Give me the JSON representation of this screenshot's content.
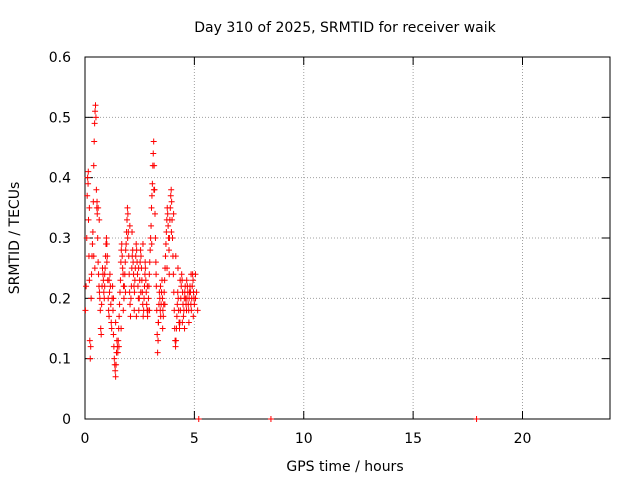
{
  "chart_data": {
    "type": "scatter",
    "title": "Day 310 of 2025, SRMTID for receiver waik",
    "xlabel": "GPS time / hours",
    "ylabel": "SRMTID / TECUs",
    "xlim": [
      0,
      24
    ],
    "ylim": [
      0,
      0.6
    ],
    "xticks": [
      0,
      5,
      10,
      15,
      20
    ],
    "yticks": [
      0,
      0.1,
      0.2,
      0.3,
      0.4,
      0.5,
      0.6
    ],
    "xtick_labels": [
      "0",
      "5",
      "10",
      "15",
      "20"
    ],
    "ytick_labels": [
      "0",
      "0.1",
      "0.2",
      "0.3",
      "0.4",
      "0.5",
      "0.6"
    ],
    "grid": true,
    "marker": "+",
    "color": "#ff0000",
    "series": [
      {
        "name": "SRMTID",
        "points": [
          [
            0.02,
            0.18
          ],
          [
            0.05,
            0.22
          ],
          [
            0.08,
            0.3
          ],
          [
            0.1,
            0.37
          ],
          [
            0.12,
            0.4
          ],
          [
            0.14,
            0.39
          ],
          [
            0.16,
            0.33
          ],
          [
            0.18,
            0.27
          ],
          [
            0.2,
            0.23
          ],
          [
            0.22,
            0.13
          ],
          [
            0.24,
            0.1
          ],
          [
            0.26,
            0.12
          ],
          [
            0.28,
            0.2
          ],
          [
            0.3,
            0.24
          ],
          [
            0.32,
            0.27
          ],
          [
            0.34,
            0.29
          ],
          [
            0.36,
            0.31
          ],
          [
            0.38,
            0.36
          ],
          [
            0.4,
            0.42
          ],
          [
            0.42,
            0.46
          ],
          [
            0.44,
            0.49
          ],
          [
            0.46,
            0.51
          ],
          [
            0.48,
            0.52
          ],
          [
            0.5,
            0.5
          ],
          [
            0.52,
            0.38
          ],
          [
            0.54,
            0.35
          ],
          [
            0.56,
            0.34
          ],
          [
            0.58,
            0.3
          ],
          [
            0.6,
            0.26
          ],
          [
            0.62,
            0.24
          ],
          [
            0.64,
            0.22
          ],
          [
            0.66,
            0.21
          ],
          [
            0.68,
            0.2
          ],
          [
            0.7,
            0.18
          ],
          [
            0.72,
            0.15
          ],
          [
            0.74,
            0.14
          ],
          [
            0.76,
            0.19
          ],
          [
            0.78,
            0.22
          ],
          [
            0.8,
            0.25
          ],
          [
            0.82,
            0.24
          ],
          [
            0.84,
            0.23
          ],
          [
            0.86,
            0.21
          ],
          [
            0.88,
            0.2
          ],
          [
            0.9,
            0.22
          ],
          [
            0.92,
            0.25
          ],
          [
            0.94,
            0.27
          ],
          [
            0.96,
            0.29
          ],
          [
            0.98,
            0.3
          ],
          [
            1.0,
            0.29
          ],
          [
            1.02,
            0.27
          ],
          [
            1.04,
            0.23
          ],
          [
            1.06,
            0.2
          ],
          [
            1.08,
            0.18
          ],
          [
            1.1,
            0.17
          ],
          [
            1.12,
            0.21
          ],
          [
            1.14,
            0.24
          ],
          [
            1.16,
            0.22
          ],
          [
            1.18,
            0.19
          ],
          [
            1.2,
            0.16
          ],
          [
            1.22,
            0.15
          ],
          [
            1.24,
            0.2
          ],
          [
            1.26,
            0.22
          ],
          [
            1.28,
            0.18
          ],
          [
            1.3,
            0.14
          ],
          [
            1.32,
            0.12
          ],
          [
            1.34,
            0.1
          ],
          [
            1.36,
            0.09
          ],
          [
            1.38,
            0.08
          ],
          [
            1.4,
            0.07
          ],
          [
            1.42,
            0.09
          ],
          [
            1.44,
            0.11
          ],
          [
            1.46,
            0.13
          ],
          [
            1.48,
            0.12
          ],
          [
            1.5,
            0.11
          ],
          [
            1.52,
            0.13
          ],
          [
            1.54,
            0.15
          ],
          [
            1.56,
            0.17
          ],
          [
            1.58,
            0.19
          ],
          [
            1.6,
            0.21
          ],
          [
            1.62,
            0.23
          ],
          [
            1.64,
            0.26
          ],
          [
            1.66,
            0.28
          ],
          [
            1.68,
            0.29
          ],
          [
            1.7,
            0.27
          ],
          [
            1.72,
            0.25
          ],
          [
            1.74,
            0.24
          ],
          [
            1.76,
            0.22
          ],
          [
            1.78,
            0.2
          ],
          [
            1.8,
            0.22
          ],
          [
            1.82,
            0.24
          ],
          [
            1.84,
            0.26
          ],
          [
            1.86,
            0.28
          ],
          [
            1.88,
            0.29
          ],
          [
            1.9,
            0.31
          ],
          [
            1.92,
            0.33
          ],
          [
            1.94,
            0.35
          ],
          [
            1.96,
            0.34
          ],
          [
            1.98,
            0.31
          ],
          [
            2.0,
            0.27
          ],
          [
            2.02,
            0.24
          ],
          [
            2.04,
            0.21
          ],
          [
            2.06,
            0.19
          ],
          [
            2.08,
            0.17
          ],
          [
            2.1,
            0.2
          ],
          [
            2.12,
            0.22
          ],
          [
            2.14,
            0.25
          ],
          [
            2.16,
            0.27
          ],
          [
            2.18,
            0.28
          ],
          [
            2.2,
            0.26
          ],
          [
            2.22,
            0.24
          ],
          [
            2.24,
            0.22
          ],
          [
            2.26,
            0.21
          ],
          [
            2.28,
            0.23
          ],
          [
            2.3,
            0.25
          ],
          [
            2.32,
            0.27
          ],
          [
            2.34,
            0.29
          ],
          [
            2.36,
            0.28
          ],
          [
            2.38,
            0.26
          ],
          [
            2.4,
            0.24
          ],
          [
            2.42,
            0.22
          ],
          [
            2.44,
            0.2
          ],
          [
            2.46,
            0.18
          ],
          [
            2.48,
            0.2
          ],
          [
            2.5,
            0.23
          ],
          [
            2.52,
            0.26
          ],
          [
            2.54,
            0.28
          ],
          [
            2.56,
            0.27
          ],
          [
            2.58,
            0.25
          ],
          [
            2.6,
            0.23
          ],
          [
            2.62,
            0.21
          ],
          [
            2.64,
            0.19
          ],
          [
            2.66,
            0.17
          ],
          [
            2.68,
            0.18
          ],
          [
            2.7,
            0.2
          ],
          [
            2.72,
            0.22
          ],
          [
            2.74,
            0.24
          ],
          [
            2.76,
            0.25
          ],
          [
            2.78,
            0.23
          ],
          [
            2.8,
            0.21
          ],
          [
            2.82,
            0.19
          ],
          [
            2.84,
            0.18
          ],
          [
            2.86,
            0.17
          ],
          [
            2.88,
            0.18
          ],
          [
            2.9,
            0.2
          ],
          [
            2.92,
            0.22
          ],
          [
            2.94,
            0.24
          ],
          [
            2.96,
            0.26
          ],
          [
            2.98,
            0.28
          ],
          [
            3.0,
            0.3
          ],
          [
            3.02,
            0.32
          ],
          [
            3.04,
            0.35
          ],
          [
            3.06,
            0.37
          ],
          [
            3.08,
            0.39
          ],
          [
            3.1,
            0.42
          ],
          [
            3.12,
            0.44
          ],
          [
            3.14,
            0.46
          ],
          [
            3.16,
            0.42
          ],
          [
            3.18,
            0.38
          ],
          [
            3.2,
            0.34
          ],
          [
            3.22,
            0.3
          ],
          [
            3.24,
            0.26
          ],
          [
            3.26,
            0.22
          ],
          [
            3.28,
            0.18
          ],
          [
            3.3,
            0.14
          ],
          [
            3.32,
            0.11
          ],
          [
            3.34,
            0.13
          ],
          [
            3.36,
            0.16
          ],
          [
            3.38,
            0.19
          ],
          [
            3.4,
            0.21
          ],
          [
            3.42,
            0.2
          ],
          [
            3.44,
            0.18
          ],
          [
            3.46,
            0.17
          ],
          [
            3.48,
            0.19
          ],
          [
            3.5,
            0.21
          ],
          [
            3.52,
            0.23
          ],
          [
            3.54,
            0.2
          ],
          [
            3.56,
            0.18
          ],
          [
            3.58,
            0.17
          ],
          [
            3.6,
            0.19
          ],
          [
            3.62,
            0.21
          ],
          [
            3.64,
            0.23
          ],
          [
            3.66,
            0.25
          ],
          [
            3.68,
            0.27
          ],
          [
            3.7,
            0.29
          ],
          [
            3.72,
            0.31
          ],
          [
            3.74,
            0.33
          ],
          [
            3.76,
            0.35
          ],
          [
            3.78,
            0.34
          ],
          [
            3.8,
            0.32
          ],
          [
            3.82,
            0.3
          ],
          [
            3.84,
            0.28
          ],
          [
            3.86,
            0.3
          ],
          [
            3.88,
            0.33
          ],
          [
            3.9,
            0.35
          ],
          [
            3.92,
            0.37
          ],
          [
            3.94,
            0.38
          ],
          [
            3.96,
            0.36
          ],
          [
            3.98,
            0.33
          ],
          [
            4.0,
            0.3
          ],
          [
            4.02,
            0.27
          ],
          [
            4.04,
            0.24
          ],
          [
            4.06,
            0.21
          ],
          [
            4.08,
            0.18
          ],
          [
            4.1,
            0.15
          ],
          [
            4.12,
            0.13
          ],
          [
            4.14,
            0.12
          ],
          [
            4.16,
            0.13
          ],
          [
            4.18,
            0.15
          ],
          [
            4.2,
            0.17
          ],
          [
            4.22,
            0.19
          ],
          [
            4.24,
            0.21
          ],
          [
            4.26,
            0.2
          ],
          [
            4.28,
            0.18
          ],
          [
            4.3,
            0.16
          ],
          [
            4.32,
            0.15
          ],
          [
            4.34,
            0.16
          ],
          [
            4.36,
            0.18
          ],
          [
            4.38,
            0.2
          ],
          [
            4.4,
            0.22
          ],
          [
            4.42,
            0.24
          ],
          [
            4.44,
            0.23
          ],
          [
            4.46,
            0.21
          ],
          [
            4.48,
            0.19
          ],
          [
            4.5,
            0.17
          ],
          [
            4.52,
            0.18
          ],
          [
            4.54,
            0.2
          ],
          [
            4.56,
            0.21
          ],
          [
            4.58,
            0.22
          ],
          [
            4.6,
            0.2
          ],
          [
            4.62,
            0.19
          ],
          [
            4.64,
            0.18
          ],
          [
            4.66,
            0.2
          ],
          [
            4.68,
            0.22
          ],
          [
            4.7,
            0.21
          ],
          [
            4.72,
            0.19
          ],
          [
            4.74,
            0.18
          ],
          [
            4.76,
            0.2
          ],
          [
            4.78,
            0.21
          ],
          [
            4.8,
            0.22
          ],
          [
            4.82,
            0.21
          ],
          [
            4.84,
            0.19
          ],
          [
            4.86,
            0.18
          ],
          [
            4.88,
            0.2
          ],
          [
            4.9,
            0.22
          ],
          [
            4.92,
            0.24
          ],
          [
            4.94,
            0.23
          ],
          [
            4.96,
            0.21
          ],
          [
            4.98,
            0.2
          ],
          [
            5.0,
            0.19
          ],
          [
            5.05,
            0.2
          ],
          [
            5.1,
            0.21
          ],
          [
            5.15,
            0.18
          ],
          [
            0.15,
            0.41
          ],
          [
            0.2,
            0.35
          ],
          [
            0.4,
            0.27
          ],
          [
            0.45,
            0.25
          ],
          [
            0.55,
            0.36
          ],
          [
            0.6,
            0.35
          ],
          [
            0.65,
            0.33
          ],
          [
            0.9,
            0.24
          ],
          [
            1.0,
            0.26
          ],
          [
            1.1,
            0.23
          ],
          [
            1.3,
            0.2
          ],
          [
            1.4,
            0.16
          ],
          [
            1.55,
            0.12
          ],
          [
            1.65,
            0.15
          ],
          [
            1.75,
            0.18
          ],
          [
            1.85,
            0.21
          ],
          [
            1.95,
            0.3
          ],
          [
            2.05,
            0.32
          ],
          [
            2.15,
            0.31
          ],
          [
            2.25,
            0.18
          ],
          [
            2.35,
            0.17
          ],
          [
            2.45,
            0.25
          ],
          [
            2.55,
            0.21
          ],
          [
            2.65,
            0.29
          ],
          [
            2.75,
            0.26
          ],
          [
            2.85,
            0.22
          ],
          [
            2.95,
            0.18
          ],
          [
            3.05,
            0.29
          ],
          [
            3.15,
            0.38
          ],
          [
            3.25,
            0.24
          ],
          [
            3.35,
            0.16
          ],
          [
            3.45,
            0.22
          ],
          [
            3.55,
            0.15
          ],
          [
            3.65,
            0.19
          ],
          [
            3.75,
            0.25
          ],
          [
            3.85,
            0.24
          ],
          [
            3.95,
            0.31
          ],
          [
            4.05,
            0.34
          ],
          [
            4.15,
            0.27
          ],
          [
            4.25,
            0.25
          ],
          [
            4.35,
            0.23
          ],
          [
            4.45,
            0.16
          ],
          [
            4.55,
            0.15
          ],
          [
            4.65,
            0.23
          ],
          [
            4.75,
            0.16
          ],
          [
            4.85,
            0.24
          ],
          [
            4.95,
            0.17
          ],
          [
            5.05,
            0.24
          ],
          [
            5.2,
            0.0
          ],
          [
            8.5,
            0.0
          ],
          [
            17.9,
            0.0
          ]
        ]
      }
    ]
  }
}
